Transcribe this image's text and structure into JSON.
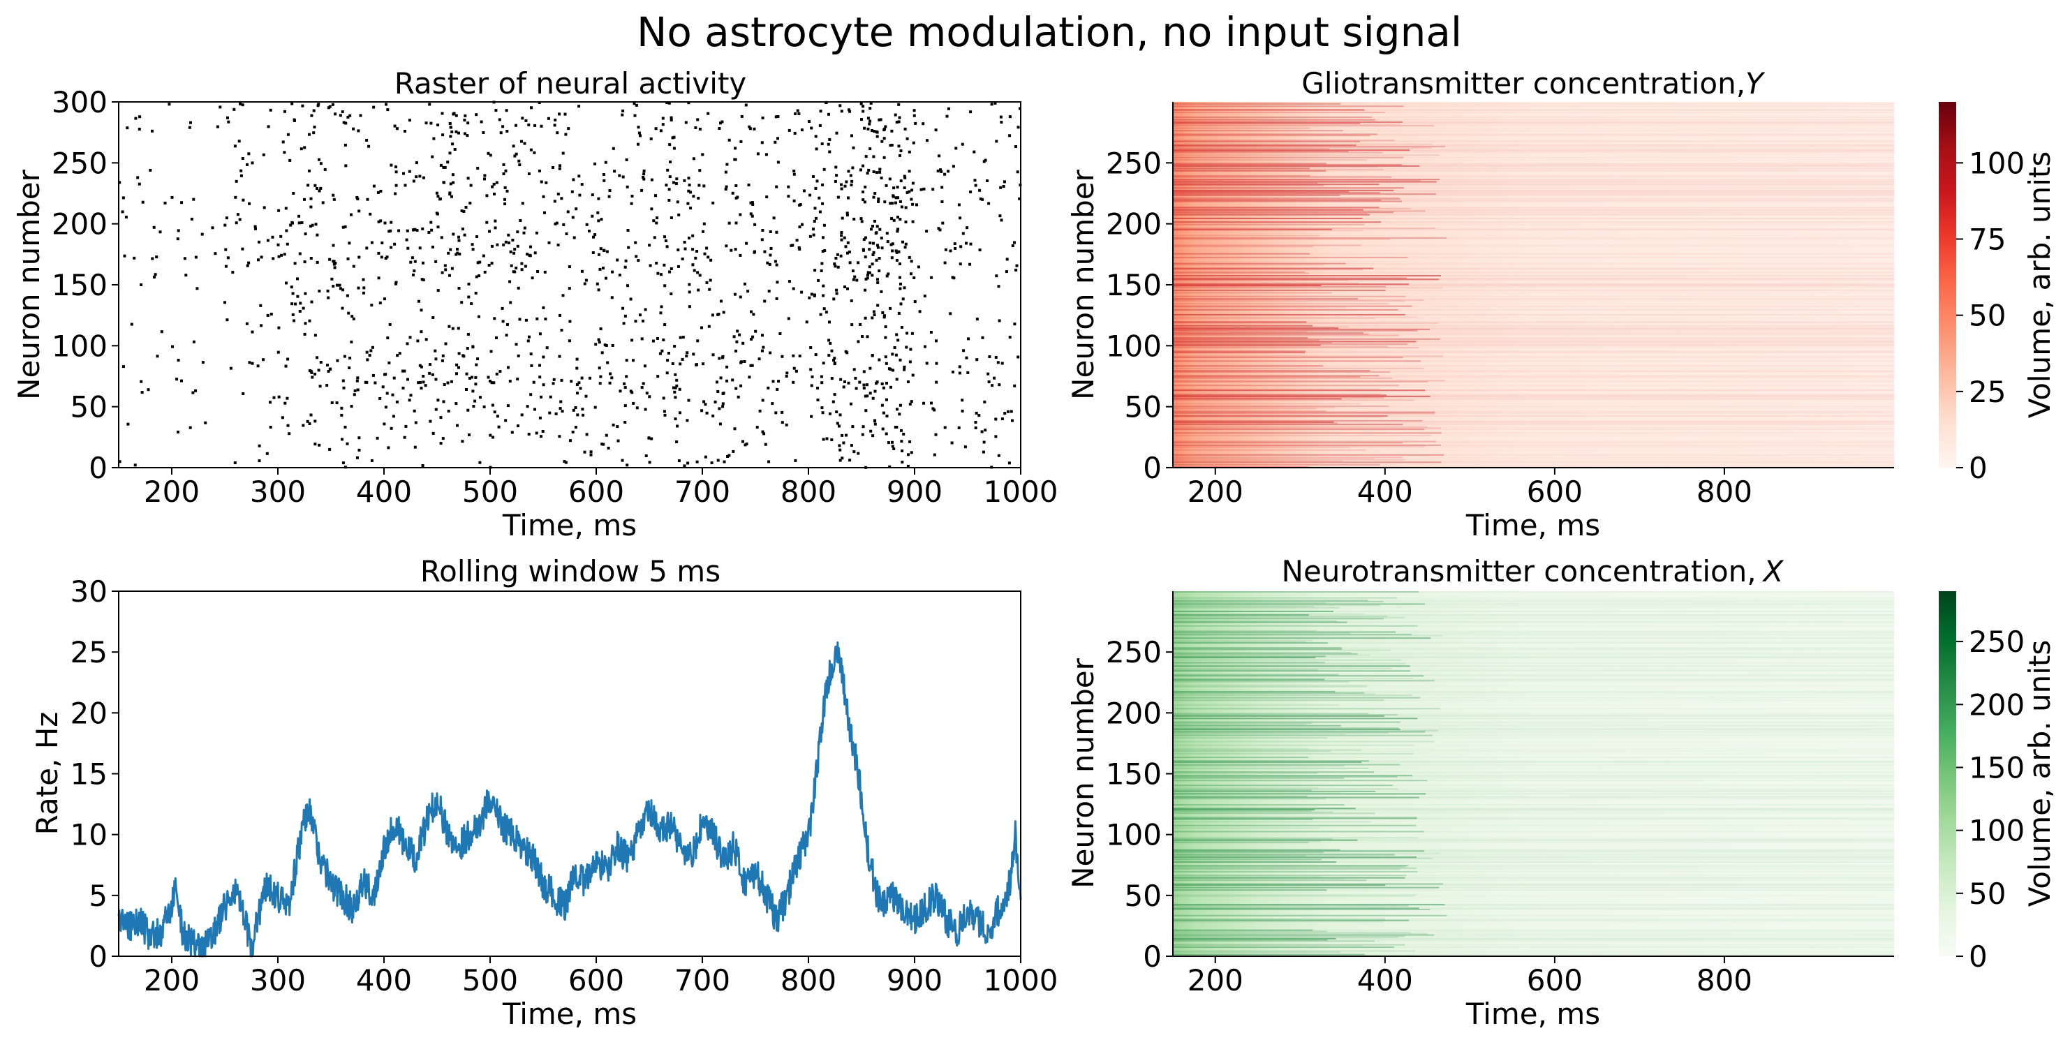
{
  "figure": {
    "title": "No astrocyte modulation, no input signal"
  },
  "chart_data": [
    {
      "type": "scatter",
      "title": "Raster of neural activity",
      "xlabel": "Time, ms",
      "ylabel": "Neuron number",
      "xlim": [
        150,
        1000
      ],
      "ylim": [
        0,
        300
      ],
      "xticks": [
        200,
        300,
        400,
        500,
        600,
        700,
        800,
        900,
        1000
      ],
      "yticks": [
        0,
        50,
        100,
        150,
        200,
        250,
        300
      ],
      "xtick_labels": [
        "200",
        "300",
        "400",
        "500",
        "600",
        "700",
        "800",
        "900",
        "1000"
      ],
      "ytick_labels": [
        "0",
        "50",
        "100",
        "150",
        "200",
        "250",
        "300"
      ],
      "marker_color": "#000000",
      "spike_count_estimate": 1800,
      "activity_profile": {
        "bins_ms": [
          150,
          200,
          250,
          300,
          350,
          400,
          450,
          500,
          550,
          600,
          650,
          700,
          750,
          800,
          850,
          900,
          950
        ],
        "relative_density": [
          0.3,
          0.25,
          0.55,
          1.0,
          0.9,
          1.0,
          1.2,
          1.1,
          0.85,
          0.95,
          1.15,
          1.0,
          0.75,
          1.4,
          2.2,
          0.6,
          0.7
        ]
      }
    },
    {
      "type": "line",
      "title": "Rolling window 5 ms",
      "xlabel": "Time, ms",
      "ylabel": "Rate, Hz",
      "xlim": [
        150,
        1000
      ],
      "ylim": [
        0,
        30
      ],
      "xticks": [
        200,
        300,
        400,
        500,
        600,
        700,
        800,
        900,
        1000
      ],
      "yticks": [
        0,
        5,
        10,
        15,
        20,
        25,
        30
      ],
      "xtick_labels": [
        "200",
        "300",
        "400",
        "500",
        "600",
        "700",
        "800",
        "900",
        "1000"
      ],
      "ytick_labels": [
        "0",
        "5",
        "10",
        "15",
        "20",
        "25",
        "30"
      ],
      "color": "#1f77b4",
      "series": [
        {
          "name": "rate",
          "x": [
            150,
            160,
            170,
            180,
            190,
            200,
            205,
            210,
            220,
            230,
            240,
            250,
            260,
            270,
            275,
            280,
            290,
            300,
            310,
            320,
            325,
            330,
            340,
            350,
            360,
            370,
            380,
            390,
            400,
            410,
            420,
            430,
            440,
            450,
            460,
            470,
            480,
            490,
            500,
            510,
            520,
            530,
            540,
            550,
            560,
            570,
            580,
            590,
            600,
            610,
            620,
            630,
            640,
            650,
            660,
            670,
            680,
            690,
            700,
            710,
            720,
            730,
            740,
            750,
            760,
            770,
            780,
            790,
            800,
            805,
            810,
            815,
            820,
            825,
            830,
            835,
            840,
            845,
            850,
            855,
            860,
            865,
            870,
            880,
            890,
            900,
            910,
            920,
            930,
            940,
            950,
            960,
            970,
            980,
            990,
            995,
            1000
          ],
          "values": [
            3,
            2.5,
            3,
            1.5,
            2,
            4,
            6,
            2,
            1,
            0.5,
            2,
            4,
            5.5,
            2.5,
            0.3,
            3,
            6,
            5,
            4,
            9,
            11,
            12,
            8,
            6,
            5,
            4,
            6,
            5,
            9,
            11,
            9,
            8,
            11,
            13,
            10,
            9,
            10,
            11,
            13,
            11,
            10,
            9,
            8,
            6,
            5,
            4,
            7,
            6,
            8,
            7,
            9,
            8,
            10,
            12,
            10,
            11,
            9,
            8,
            11,
            10,
            8,
            9,
            6,
            7,
            5,
            3,
            5,
            8,
            10,
            13,
            17,
            21,
            23,
            25,
            24,
            21,
            18,
            16,
            13,
            9,
            7,
            5,
            4,
            5,
            4,
            3,
            4,
            5,
            3,
            2,
            4,
            3,
            2,
            4,
            6,
            10,
            5
          ]
        }
      ]
    },
    {
      "type": "heatmap",
      "title": "Gliotransmitter concentration,",
      "title_symbol": "Y",
      "xlabel": "Time, ms",
      "ylabel": "Neuron number",
      "xlim": [
        150,
        1000
      ],
      "ylim": [
        0,
        300
      ],
      "xticks": [
        200,
        400,
        600,
        800
      ],
      "yticks": [
        0,
        50,
        100,
        150,
        200,
        250
      ],
      "xtick_labels": [
        "200",
        "400",
        "600",
        "800"
      ],
      "ytick_labels": [
        "0",
        "50",
        "100",
        "150",
        "200",
        "250"
      ],
      "colormap": "Reds",
      "colorbar_label": "Volume, arb. units",
      "colorbar_range": [
        0,
        120
      ],
      "colorbar_ticks": [
        0,
        25,
        50,
        75,
        100
      ],
      "colorbar_tick_labels": [
        "0",
        "25",
        "50",
        "75",
        "100"
      ],
      "colormap_stops": [
        "#fff5f0",
        "#fee0d2",
        "#fcbba1",
        "#fc9272",
        "#fb6a4a",
        "#ef3b2c",
        "#cb181d",
        "#a50f15",
        "#67000d"
      ],
      "decay_profile": {
        "time_ms": [
          150,
          200,
          250,
          300,
          400,
          600,
          800,
          1000
        ],
        "mean_value": [
          45,
          30,
          22,
          16,
          10,
          7,
          6,
          5
        ]
      }
    },
    {
      "type": "heatmap",
      "title": "Neurotransmitter concentration,",
      "title_symbol": "X",
      "xlabel": "Time, ms",
      "ylabel": "Neuron number",
      "xlim": [
        150,
        1000
      ],
      "ylim": [
        0,
        300
      ],
      "xticks": [
        200,
        400,
        600,
        800
      ],
      "yticks": [
        0,
        50,
        100,
        150,
        200,
        250
      ],
      "xtick_labels": [
        "200",
        "400",
        "600",
        "800"
      ],
      "ytick_labels": [
        "0",
        "50",
        "100",
        "150",
        "200",
        "250"
      ],
      "colormap": "Greens",
      "colorbar_label": "Volume, arb. units",
      "colorbar_range": [
        0,
        290
      ],
      "colorbar_ticks": [
        0,
        50,
        100,
        150,
        200,
        250
      ],
      "colorbar_tick_labels": [
        "0",
        "50",
        "100",
        "150",
        "200",
        "250"
      ],
      "colormap_stops": [
        "#f7fcf5",
        "#e5f5e0",
        "#c7e9c0",
        "#a1d99b",
        "#74c476",
        "#41ab5d",
        "#238b45",
        "#006d2c",
        "#00441b"
      ],
      "decay_profile": {
        "time_ms": [
          150,
          200,
          250,
          300,
          400,
          600,
          800,
          1000
        ],
        "mean_value": [
          60,
          40,
          28,
          20,
          12,
          8,
          7,
          6
        ]
      }
    }
  ]
}
